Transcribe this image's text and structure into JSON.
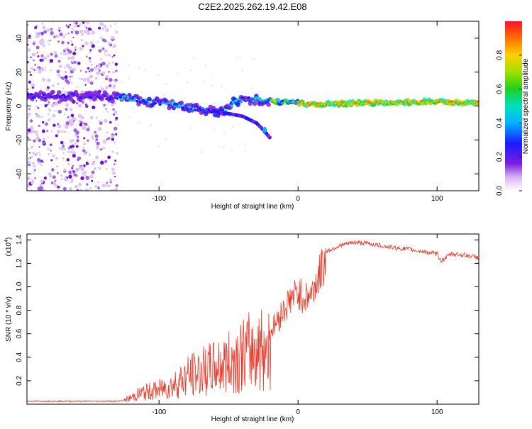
{
  "chart_data": [
    {
      "type": "heatmap",
      "title": "C2E2.2025.262.19.42.E08",
      "xlabel": "Height of straight line (km)",
      "ylabel": "Frequency (Hz)",
      "xlim": [
        -195,
        130
      ],
      "ylim": [
        -50,
        50
      ],
      "xticks": [
        -100,
        0,
        100
      ],
      "yticks": [
        -40,
        -20,
        0,
        20,
        40
      ],
      "colorbar": {
        "label": "Normalized spectral amplitude",
        "range": [
          0,
          1
        ],
        "ticks": [
          "0.0",
          "0.2",
          "0.4",
          "0.6",
          "0.8"
        ]
      },
      "main_trace": [
        {
          "x": -195,
          "y": 6
        },
        {
          "x": -170,
          "y": 6
        },
        {
          "x": -150,
          "y": 6
        },
        {
          "x": -130,
          "y": 5
        },
        {
          "x": -110,
          "y": 3
        },
        {
          "x": -90,
          "y": 1
        },
        {
          "x": -70,
          "y": -2
        },
        {
          "x": -55,
          "y": -4
        },
        {
          "x": -45,
          "y": 3
        },
        {
          "x": -35,
          "y": 4
        },
        {
          "x": -20,
          "y": 3
        },
        {
          "x": -10,
          "y": 2
        },
        {
          "x": 0,
          "y": 2
        },
        {
          "x": 10,
          "y": 1
        },
        {
          "x": 30,
          "y": 1.5
        },
        {
          "x": 60,
          "y": 2
        },
        {
          "x": 90,
          "y": 2.5
        },
        {
          "x": 130,
          "y": 2
        }
      ],
      "branch_trace": [
        {
          "x": -60,
          "y": -3
        },
        {
          "x": -40,
          "y": -6
        },
        {
          "x": -30,
          "y": -10
        },
        {
          "x": -25,
          "y": -14
        },
        {
          "x": -20,
          "y": -19
        }
      ]
    },
    {
      "type": "line",
      "xlabel": "Height of straight line (km)",
      "ylabel": "SNR (10 * v/v)",
      "y_multiplier": "(x10",
      "y_multiplier_exp": "4",
      "y_multiplier_close": ")",
      "xlim": [
        -195,
        130
      ],
      "ylim": [
        0,
        1.45
      ],
      "xticks": [
        -100,
        0,
        100
      ],
      "yticks": [
        "0.2",
        "0.4",
        "0.6",
        "0.8",
        "1.0",
        "1.2",
        "1.4"
      ],
      "series": [
        {
          "name": "SNR",
          "color": "#e83a2a",
          "x": [
            -195,
            -180,
            -150,
            -130,
            -125,
            -120,
            -115,
            -110,
            -100,
            -90,
            -80,
            -70,
            -60,
            -50,
            -40,
            -30,
            -20,
            -15,
            -10,
            -5,
            0,
            5,
            10,
            15,
            20,
            30,
            40,
            50,
            60,
            70,
            80,
            90,
            100,
            103,
            110,
            120,
            130
          ],
          "y": [
            0.02,
            0.02,
            0.02,
            0.02,
            0.03,
            0.06,
            0.1,
            0.12,
            0.15,
            0.2,
            0.3,
            0.35,
            0.4,
            0.45,
            0.55,
            0.6,
            0.65,
            0.75,
            0.85,
            0.95,
            1.0,
            0.95,
            1.0,
            1.15,
            1.3,
            1.35,
            1.38,
            1.37,
            1.35,
            1.33,
            1.32,
            1.3,
            1.28,
            1.22,
            1.28,
            1.27,
            1.25
          ]
        }
      ]
    }
  ]
}
